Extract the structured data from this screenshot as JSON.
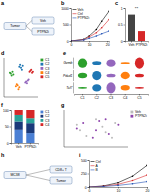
{
  "chart_data": [
    {
      "type": "diagram",
      "title": "a",
      "labels": [
        "Tumor",
        "Veh",
        "PTPN2i"
      ]
    },
    {
      "type": "line",
      "title": "b",
      "x": [
        0,
        7,
        10,
        14,
        17,
        21
      ],
      "xlim": [
        0,
        21
      ],
      "xticks": [
        0,
        10,
        20
      ],
      "ylim": [
        0,
        1000
      ],
      "yticks": [
        0,
        500,
        1000
      ],
      "series": [
        {
          "name": "Veh",
          "color": "#000000",
          "marker": "circle",
          "values": [
            0,
            50,
            150,
            350,
            600,
            900
          ]
        },
        {
          "name": "Ctrl",
          "color": "#d62728",
          "marker": "circle",
          "values": [
            0,
            40,
            120,
            250,
            400,
            650
          ]
        },
        {
          "name": "PTPN2i",
          "color": "#1f4fb4",
          "marker": "circle",
          "values": [
            0,
            30,
            80,
            150,
            220,
            300
          ]
        }
      ]
    },
    {
      "type": "bar",
      "title": "c",
      "categories": [
        "Veh",
        "PTPN2i"
      ],
      "values": [
        0.8,
        0.3
      ],
      "colors": [
        "#444444",
        "#d62728"
      ],
      "ylim": [
        0,
        1
      ],
      "yticks": [
        0,
        0.5,
        1
      ],
      "annotation": "**"
    },
    {
      "type": "scatter",
      "title": "d",
      "xlim": [
        -10,
        10
      ],
      "ylim": [
        -10,
        10
      ],
      "tick_labels": false,
      "series": [
        {
          "name": "C1",
          "color": "#2ca02c",
          "x": [
            -6,
            -5,
            -4.5,
            -5.5,
            -6.5
          ],
          "y": [
            2,
            3,
            1.5,
            1,
            2.5
          ]
        },
        {
          "name": "C2",
          "color": "#1f77b4",
          "x": [
            0,
            1,
            -1,
            0.5,
            -0.5
          ],
          "y": [
            5,
            6,
            5.5,
            4,
            6.5
          ]
        },
        {
          "name": "C3",
          "color": "#9467bd",
          "x": [
            3,
            4,
            3.5,
            2.5,
            4.5
          ],
          "y": [
            -2,
            -1.5,
            -3,
            -2.5,
            -1
          ]
        },
        {
          "name": "C4",
          "color": "#ff7f0e",
          "x": [
            -2,
            -1,
            -3,
            -2.5,
            -1.5
          ],
          "y": [
            -4,
            -5,
            -4.5,
            -3.5,
            -6
          ]
        },
        {
          "name": "C5",
          "color": "#d62728",
          "x": [
            5,
            6,
            6.5,
            5.5,
            7
          ],
          "y": [
            3,
            4,
            2.5,
            3.5,
            3
          ]
        }
      ]
    },
    {
      "type": "violin",
      "title": "e",
      "categories": [
        "C1",
        "C2",
        "C3",
        "C4",
        "C5"
      ],
      "colors": [
        "#2ca02c",
        "#1f77b4",
        "#9467bd",
        "#ff7f0e",
        "#d62728"
      ],
      "ylim": [
        0,
        3
      ],
      "tick_labels": "x",
      "series": [
        {
          "name": "Gzmb",
          "values": [
            2.5,
            1,
            2,
            0.5,
            3
          ]
        },
        {
          "name": "Pdcd1",
          "values": [
            1.5,
            2.5,
            1,
            2,
            1
          ]
        },
        {
          "name": "Tcf7",
          "values": [
            0.5,
            2,
            3,
            1.5,
            0.5
          ]
        }
      ]
    },
    {
      "type": "bar",
      "title": "f",
      "stacked": true,
      "categories": [
        "Veh",
        "PTPN2i"
      ],
      "ylim": [
        0,
        100
      ],
      "yticks": [
        0,
        50,
        100
      ],
      "series": [
        {
          "name": "C1",
          "color": "#4a7fd4",
          "values": [
            40,
            30
          ]
        },
        {
          "name": "C2",
          "color": "#1b3a7a",
          "values": [
            25,
            30
          ]
        },
        {
          "name": "C3",
          "color": "#2aa198",
          "values": [
            20,
            15
          ]
        },
        {
          "name": "C4",
          "color": "#d62728",
          "values": [
            15,
            25
          ]
        }
      ]
    },
    {
      "type": "scatter",
      "title": "g",
      "xlim": [
        -10,
        10
      ],
      "ylim": [
        -10,
        10
      ],
      "tick_labels": false,
      "series": [
        {
          "name": "Veh",
          "color": "#bbbbbb",
          "x": [
            -6,
            -3,
            0,
            3,
            6,
            -5,
            2,
            5
          ],
          "y": [
            2,
            -4,
            5,
            -2,
            3,
            -1,
            1,
            -5
          ]
        },
        {
          "name": "PTPN2i",
          "color": "#8e44ad",
          "x": [
            -4,
            -1,
            1,
            4,
            7,
            -6,
            0,
            3
          ],
          "y": [
            3,
            -5,
            4,
            -3,
            2,
            0,
            -1,
            5
          ]
        }
      ]
    },
    {
      "type": "diagram",
      "title": "h",
      "labels": [
        "MC38",
        "CD8+ T",
        "Tumor"
      ]
    },
    {
      "type": "line",
      "title": "i",
      "x": [
        0,
        5,
        10,
        15,
        20
      ],
      "xlim": [
        0,
        20
      ],
      "xticks": [
        0,
        10,
        20
      ],
      "ylim": [
        0,
        500
      ],
      "yticks": [
        0,
        250,
        500
      ],
      "series": [
        {
          "name": "Ctrl",
          "color": "#000000",
          "marker": "circle",
          "values": [
            0,
            20,
            80,
            200,
            400
          ]
        },
        {
          "name": "A",
          "color": "#d62728",
          "marker": "circle",
          "values": [
            0,
            15,
            50,
            120,
            220
          ]
        },
        {
          "name": "B",
          "color": "#1f4fb4",
          "marker": "circle",
          "values": [
            0,
            10,
            30,
            60,
            100
          ]
        }
      ]
    }
  ]
}
